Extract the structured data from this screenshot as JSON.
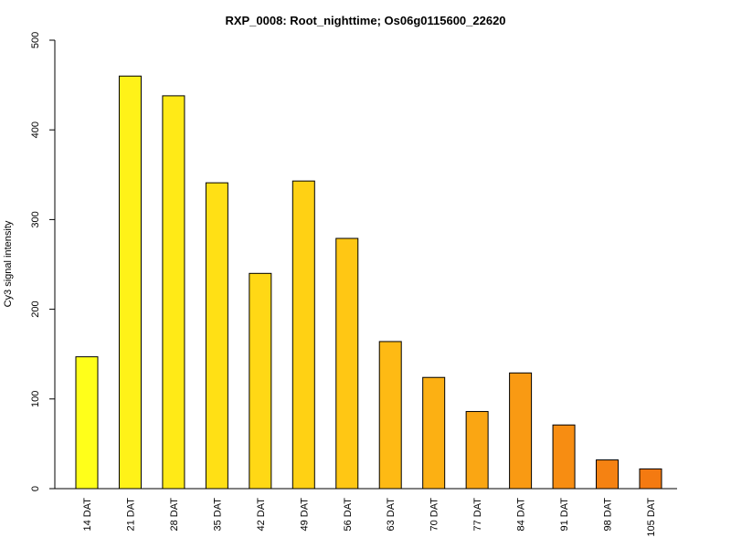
{
  "chart_data": {
    "type": "bar",
    "title": "RXP_0008: Root_nighttime; Os06g0115600_22620",
    "xlabel": "",
    "ylabel": "Cy3 signal intensity",
    "ylim": [
      0,
      500
    ],
    "yticks": [
      0,
      100,
      200,
      300,
      400,
      500
    ],
    "categories": [
      "14 DAT",
      "21 DAT",
      "28 DAT",
      "35 DAT",
      "42 DAT",
      "49 DAT",
      "56 DAT",
      "63 DAT",
      "70 DAT",
      "77 DAT",
      "84 DAT",
      "91 DAT",
      "98 DAT",
      "105 DAT"
    ],
    "values": [
      147,
      460,
      438,
      341,
      240,
      343,
      279,
      164,
      124,
      86,
      129,
      71,
      32,
      22
    ],
    "colors": [
      "#FFFF1A",
      "#FFF218",
      "#FFEA17",
      "#FFE015",
      "#FFD815",
      "#FFD114",
      "#FFC714",
      "#FEBA14",
      "#FCB013",
      "#FAA613",
      "#F99A13",
      "#F78D12",
      "#F58212",
      "#F47A11"
    ],
    "grid": false,
    "legend": "none"
  }
}
